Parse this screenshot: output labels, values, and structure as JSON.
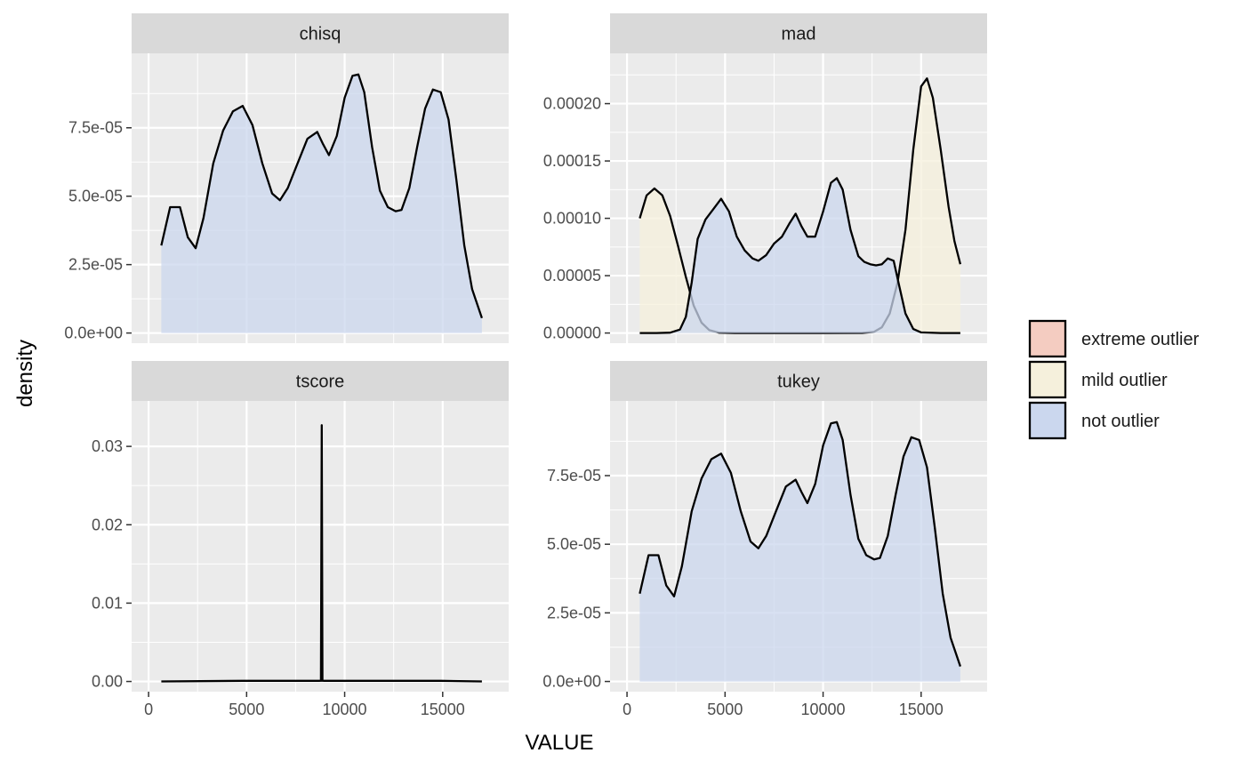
{
  "chart_data": {
    "type": "area",
    "xlabel": "VALUE",
    "ylabel": "density",
    "xlim": [
      0,
      17500
    ],
    "x_ticks": [
      0,
      5000,
      10000,
      15000
    ],
    "x_tick_labels": [
      "0",
      "5000",
      "10000",
      "15000"
    ],
    "grid": true,
    "legend_position": "right",
    "legend": [
      {
        "label": "extreme outlier",
        "color": "#F4CCC1"
      },
      {
        "label": "mild outlier",
        "color": "#F5F0DC"
      },
      {
        "label": "not outlier",
        "color": "#CBD7EE"
      }
    ],
    "panels": [
      {
        "title": "chisq",
        "ylim": [
          0,
          9.85e-05
        ],
        "y_ticks": [
          0,
          2.5e-05,
          5e-05,
          7.5e-05
        ],
        "y_tick_labels": [
          "0.0e+00",
          "2.5e-05",
          "5.0e-05",
          "7.5e-05"
        ],
        "series": [
          {
            "name": "not outlier",
            "color": "#CBD7EE",
            "x": [
              650,
              1100,
              1600,
              2000,
              2400,
              2800,
              3300,
              3800,
              4300,
              4800,
              5300,
              5800,
              6300,
              6700,
              7100,
              7600,
              8100,
              8600,
              8900,
              9200,
              9600,
              10000,
              10400,
              10700,
              11000,
              11400,
              11800,
              12200,
              12600,
              12900,
              13300,
              13700,
              14100,
              14500,
              14900,
              15300,
              15700,
              16100,
              16500,
              17000
            ],
            "y": [
              3.2e-05,
              4.6e-05,
              4.6e-05,
              3.5e-05,
              3.1e-05,
              4.2e-05,
              6.2e-05,
              7.4e-05,
              8.1e-05,
              8.3e-05,
              7.6e-05,
              6.2e-05,
              5.1e-05,
              4.85e-05,
              5.3e-05,
              6.2e-05,
              7.1e-05,
              7.35e-05,
              6.9e-05,
              6.5e-05,
              7.2e-05,
              8.6e-05,
              9.4e-05,
              9.45e-05,
              8.8e-05,
              6.8e-05,
              5.2e-05,
              4.6e-05,
              4.45e-05,
              4.5e-05,
              5.3e-05,
              6.8e-05,
              8.2e-05,
              8.9e-05,
              8.8e-05,
              7.8e-05,
              5.6e-05,
              3.2e-05,
              1.6e-05,
              5.5e-06
            ]
          }
        ]
      },
      {
        "title": "mad",
        "ylim": [
          0,
          0.000235
        ],
        "y_ticks": [
          0,
          5e-05,
          0.0001,
          0.00015,
          0.0002
        ],
        "y_tick_labels": [
          "0.00000",
          "0.00005",
          "0.00010",
          "0.00015",
          "0.00020"
        ],
        "series": [
          {
            "name": "mild outlier",
            "color": "#F5F0DC",
            "x": [
              650,
              1000,
              1400,
              1800,
              2200,
              2600,
              3000,
              3400,
              3800,
              4200,
              4700,
              5500,
              6500,
              8000,
              10000,
              12000,
              12600,
              13000,
              13400,
              13800,
              14200,
              14600,
              15000,
              15300,
              15600,
              16000,
              16400,
              16700,
              17000
            ],
            "y": [
              0.0001,
              0.00012,
              0.000126,
              0.00012,
              0.000102,
              7.6e-05,
              4.9e-05,
              2.4e-05,
              9e-06,
              2.5e-06,
              3e-07,
              0,
              0,
              0,
              0,
              1e-07,
              1e-06,
              5e-06,
              1.7e-05,
              4.4e-05,
              9e-05,
              0.00016,
              0.000215,
              0.000222,
              0.000205,
              0.00016,
              0.00011,
              8e-05,
              6e-05
            ]
          },
          {
            "name": "not outlier",
            "color": "#CBD7EE",
            "x": [
              650,
              1500,
              2200,
              2700,
              3000,
              3300,
              3600,
              4000,
              4400,
              4800,
              5200,
              5600,
              6000,
              6400,
              6700,
              7100,
              7500,
              7900,
              8300,
              8600,
              8900,
              9200,
              9600,
              10000,
              10400,
              10700,
              11000,
              11400,
              11800,
              12100,
              12400,
              12700,
              13000,
              13300,
              13600,
              13900,
              14200,
              14600,
              15000,
              16000,
              17000
            ],
            "y": [
              0,
              0,
              3e-07,
              3e-06,
              1.4e-05,
              4.4e-05,
              8.2e-05,
              9.9e-05,
              0.000108,
              0.000117,
              0.000106,
              8.4e-05,
              7.2e-05,
              6.5e-05,
              6.3e-05,
              6.8e-05,
              7.8e-05,
              8.4e-05,
              9.6e-05,
              0.000104,
              9.3e-05,
              8.4e-05,
              8.4e-05,
              0.000106,
              0.000131,
              0.000135,
              0.000125,
              9e-05,
              6.7e-05,
              6.2e-05,
              6e-05,
              5.9e-05,
              6e-05,
              6.5e-05,
              6.3e-05,
              4e-05,
              1.7e-05,
              3.5e-06,
              5e-07,
              0,
              0
            ]
          }
        ]
      },
      {
        "title": "tscore",
        "ylim": [
          0,
          0.0345
        ],
        "y_ticks": [
          0,
          0.01,
          0.02,
          0.03
        ],
        "y_tick_labels": [
          "0.00",
          "0.01",
          "0.02",
          "0.03"
        ],
        "series": [
          {
            "name": "not outlier",
            "color": "#CBD7EE",
            "x": [
              650,
              4800,
              8700,
              8790,
              8830,
              8870,
              8960,
              10700,
              14900,
              17000
            ],
            "y": [
              1e-05,
              8e-05,
              8e-05,
              0.0001,
              0.0327,
              0.0001,
              8e-05,
              9e-05,
              8.8e-05,
              1e-05
            ]
          }
        ]
      },
      {
        "title": "tukey",
        "ylim": [
          0,
          9.85e-05
        ],
        "y_ticks": [
          0,
          2.5e-05,
          5e-05,
          7.5e-05
        ],
        "y_tick_labels": [
          "0.0e+00",
          "2.5e-05",
          "5.0e-05",
          "7.5e-05"
        ],
        "series": [
          {
            "name": "not outlier",
            "color": "#CBD7EE",
            "x": [
              650,
              1100,
              1600,
              2000,
              2400,
              2800,
              3300,
              3800,
              4300,
              4800,
              5300,
              5800,
              6300,
              6700,
              7100,
              7600,
              8100,
              8600,
              8900,
              9200,
              9600,
              10000,
              10400,
              10700,
              11000,
              11400,
              11800,
              12200,
              12600,
              12900,
              13300,
              13700,
              14100,
              14500,
              14900,
              15300,
              15700,
              16100,
              16500,
              17000
            ],
            "y": [
              3.2e-05,
              4.6e-05,
              4.6e-05,
              3.5e-05,
              3.1e-05,
              4.2e-05,
              6.2e-05,
              7.4e-05,
              8.1e-05,
              8.3e-05,
              7.6e-05,
              6.2e-05,
              5.1e-05,
              4.85e-05,
              5.3e-05,
              6.2e-05,
              7.1e-05,
              7.35e-05,
              6.9e-05,
              6.5e-05,
              7.2e-05,
              8.6e-05,
              9.4e-05,
              9.45e-05,
              8.8e-05,
              6.8e-05,
              5.2e-05,
              4.6e-05,
              4.45e-05,
              4.5e-05,
              5.3e-05,
              6.8e-05,
              8.2e-05,
              8.9e-05,
              8.8e-05,
              7.8e-05,
              5.6e-05,
              3.2e-05,
              1.6e-05,
              5.5e-06
            ]
          }
        ]
      }
    ]
  }
}
